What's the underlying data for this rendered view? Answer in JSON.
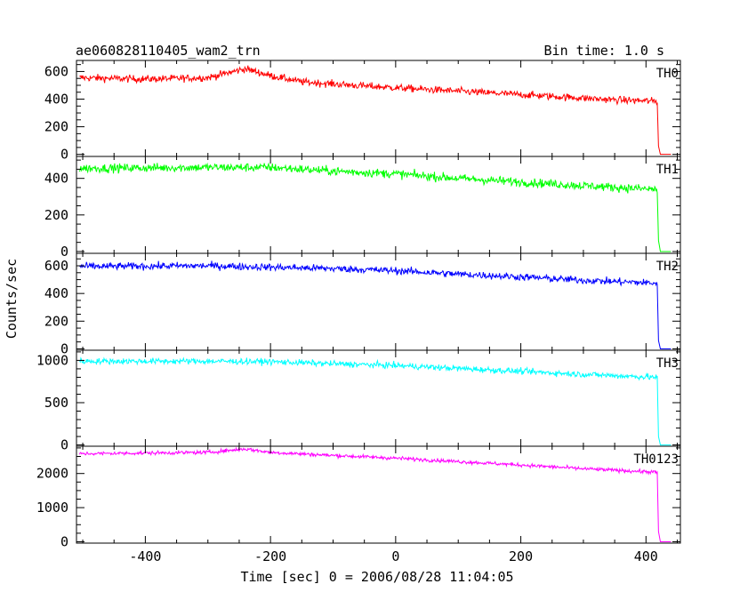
{
  "chart_data": {
    "type": "line",
    "title": "ae060828110405_wam2_trn",
    "bin_time_label": "Bin time: 1.0 s",
    "xlabel": "Time [sec] 0 = 2006/08/28 11:04:05",
    "ylabel": "Counts/sec",
    "xlim": [
      -510,
      455
    ],
    "x_ticks": [
      -400,
      -200,
      0,
      200,
      400
    ],
    "x_minor_step": 50,
    "grid": false,
    "panels": [
      {
        "name": "TH0",
        "color": "#ff0000",
        "ylim": [
          -15,
          680
        ],
        "y_ticks": [
          0,
          200,
          400,
          600
        ],
        "y_minor_step": 50,
        "noise": 22,
        "trend": [
          [
            -505,
            555
          ],
          [
            -400,
            545
          ],
          [
            -300,
            555
          ],
          [
            -240,
            620
          ],
          [
            -200,
            570
          ],
          [
            -150,
            525
          ],
          [
            -50,
            495
          ],
          [
            50,
            470
          ],
          [
            150,
            445
          ],
          [
            250,
            420
          ],
          [
            350,
            395
          ],
          [
            415,
            385
          ],
          [
            418,
            380
          ],
          [
            420,
            60
          ],
          [
            423,
            0
          ],
          [
            440,
            0
          ]
        ]
      },
      {
        "name": "TH1",
        "color": "#00ff00",
        "ylim": [
          -10,
          520
        ],
        "y_ticks": [
          0,
          200,
          400
        ],
        "y_minor_step": 50,
        "noise": 20,
        "trend": [
          [
            -505,
            455
          ],
          [
            -300,
            460
          ],
          [
            -200,
            460
          ],
          [
            -100,
            440
          ],
          [
            0,
            425
          ],
          [
            100,
            400
          ],
          [
            200,
            380
          ],
          [
            300,
            360
          ],
          [
            415,
            340
          ],
          [
            418,
            335
          ],
          [
            420,
            60
          ],
          [
            423,
            0
          ],
          [
            440,
            0
          ]
        ]
      },
      {
        "name": "TH2",
        "color": "#0000ff",
        "ylim": [
          -10,
          690
        ],
        "y_ticks": [
          0,
          200,
          400,
          600
        ],
        "y_minor_step": 50,
        "noise": 22,
        "trend": [
          [
            -505,
            595
          ],
          [
            -300,
            600
          ],
          [
            -100,
            580
          ],
          [
            0,
            565
          ],
          [
            100,
            540
          ],
          [
            200,
            520
          ],
          [
            300,
            495
          ],
          [
            415,
            475
          ],
          [
            418,
            470
          ],
          [
            420,
            60
          ],
          [
            423,
            0
          ],
          [
            440,
            0
          ]
        ]
      },
      {
        "name": "TH3",
        "color": "#00ffff",
        "ylim": [
          -15,
          1120
        ],
        "y_ticks": [
          0,
          500,
          1000
        ],
        "y_minor_step": 100,
        "noise": 30,
        "trend": [
          [
            -505,
            990
          ],
          [
            -300,
            990
          ],
          [
            -200,
            985
          ],
          [
            -100,
            960
          ],
          [
            0,
            940
          ],
          [
            100,
            905
          ],
          [
            200,
            870
          ],
          [
            300,
            835
          ],
          [
            415,
            800
          ],
          [
            418,
            795
          ],
          [
            420,
            100
          ],
          [
            423,
            0
          ],
          [
            440,
            0
          ]
        ]
      },
      {
        "name": "TH0123",
        "color": "#ff00ff",
        "ylim": [
          -40,
          2800
        ],
        "y_ticks": [
          0,
          1000,
          2000
        ],
        "y_minor_step": 250,
        "noise": 45,
        "trend": [
          [
            -505,
            2580
          ],
          [
            -300,
            2620
          ],
          [
            -240,
            2720
          ],
          [
            -200,
            2620
          ],
          [
            -100,
            2530
          ],
          [
            0,
            2450
          ],
          [
            100,
            2350
          ],
          [
            200,
            2250
          ],
          [
            300,
            2140
          ],
          [
            415,
            2040
          ],
          [
            418,
            2020
          ],
          [
            420,
            300
          ],
          [
            423,
            0
          ],
          [
            440,
            0
          ]
        ]
      }
    ]
  }
}
